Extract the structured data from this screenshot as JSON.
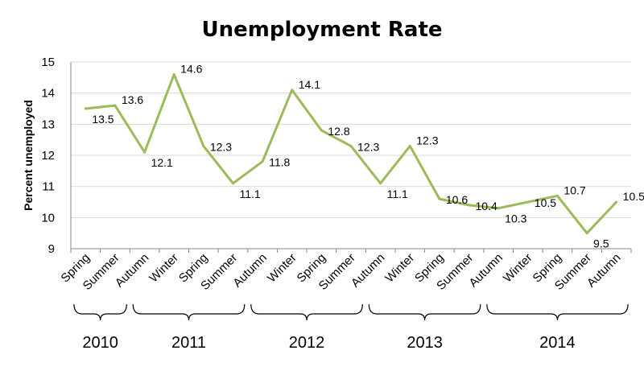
{
  "chart_data": {
    "type": "line",
    "title": "Unemployment Rate",
    "ylabel": "Percent unemployed",
    "xlabel": "",
    "ylim": [
      9,
      15
    ],
    "yticks": [
      9,
      10,
      11,
      12,
      13,
      14,
      15
    ],
    "grid": true,
    "series_color": "#9bbb59",
    "categories": [
      "Spring",
      "Summer",
      "Autumn",
      "Winter",
      "Spring",
      "Summer",
      "Autumn",
      "Winter",
      "Spring",
      "Summer",
      "Autumn",
      "Winter",
      "Spring",
      "Summer",
      "Autumn",
      "Winter",
      "Spring",
      "Summer",
      "Autumn"
    ],
    "values": [
      13.5,
      13.6,
      12.1,
      14.6,
      12.3,
      11.1,
      11.8,
      14.1,
      12.8,
      12.3,
      11.1,
      12.3,
      10.6,
      10.4,
      10.3,
      10.5,
      10.7,
      9.5,
      10.5
    ],
    "data_labels": [
      "13.5",
      "13.6",
      "12.1",
      "14.6",
      "12.3",
      "11.1",
      "11.8",
      "14.1",
      "12.8",
      "12.3",
      "11.1",
      "12.3",
      "10.6",
      "10.4",
      "10.3",
      "10.5",
      "10.7",
      "9.5",
      "10.5"
    ],
    "year_groups": [
      {
        "label": "2010",
        "start": 0,
        "end": 1
      },
      {
        "label": "2011",
        "start": 2,
        "end": 5
      },
      {
        "label": "2012",
        "start": 6,
        "end": 9
      },
      {
        "label": "2013",
        "start": 10,
        "end": 13
      },
      {
        "label": "2014",
        "start": 14,
        "end": 18
      }
    ]
  }
}
